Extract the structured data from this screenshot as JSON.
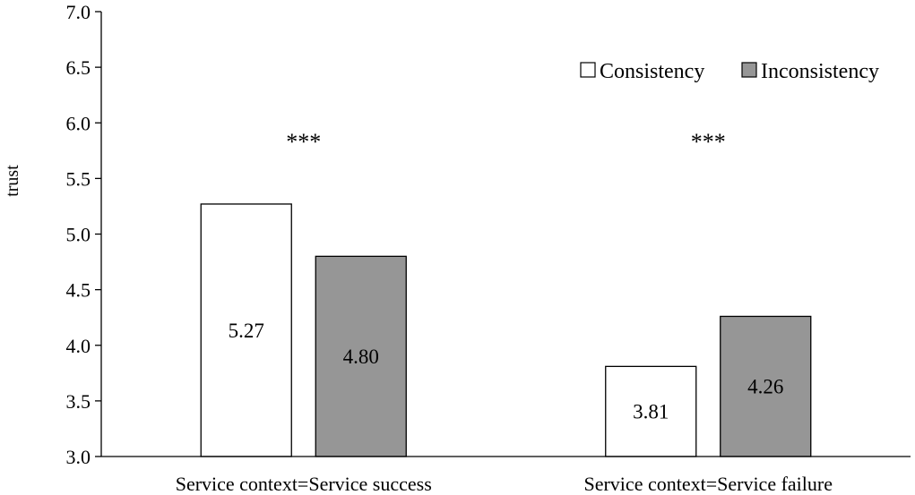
{
  "chart_data": {
    "type": "bar",
    "title": "",
    "xlabel": "",
    "ylabel": "trust",
    "ylim": [
      3.0,
      7.0
    ],
    "yticks": [
      "3.0",
      "3.5",
      "4.0",
      "4.5",
      "5.0",
      "5.5",
      "6.0",
      "6.5",
      "7.0"
    ],
    "grid": false,
    "legend_position": "top-right",
    "categories": [
      "Service context=Service success",
      "Service context=Service failure"
    ],
    "series": [
      {
        "name": "Consistency",
        "values": [
          5.27,
          3.81
        ],
        "labels": [
          "5.27",
          "3.81"
        ],
        "color": "#ffffff"
      },
      {
        "name": "Inconsistency",
        "values": [
          4.8,
          4.26
        ],
        "labels": [
          "4.80",
          "4.26"
        ],
        "color": "#969696"
      }
    ],
    "annotations": [
      "***",
      "***"
    ]
  }
}
